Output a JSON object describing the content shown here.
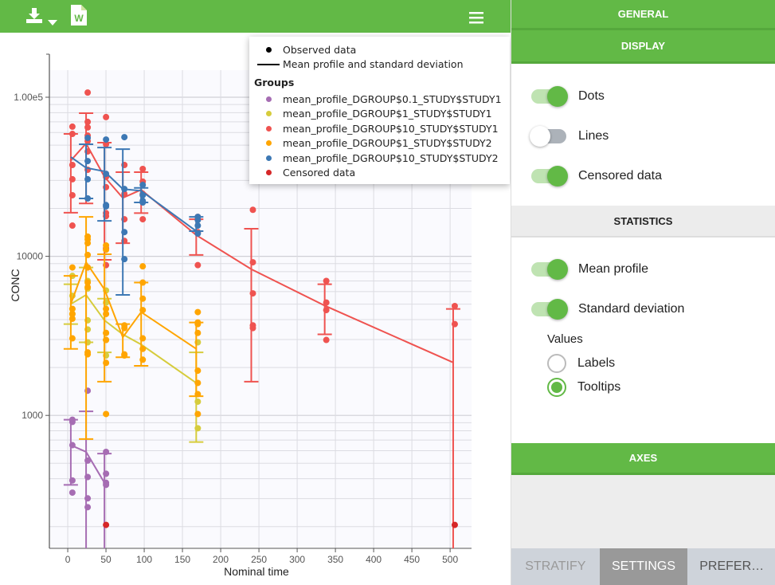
{
  "toolbar": {
    "download_icon": "download-icon",
    "dropdown_icon": "caret-down-icon",
    "word_icon_letter": "W",
    "menu_icon": "hamburger-menu-icon"
  },
  "legend": {
    "observed": "Observed data",
    "mean_sd": "Mean profile and standard deviation",
    "groups_title": "Groups",
    "censored": "Censored data"
  },
  "chart_data": {
    "type": "scatter",
    "xlabel": "Nominal time",
    "ylabel": "CONC",
    "yscale": "log",
    "xlim": [
      -24,
      528
    ],
    "ylim": [
      146,
      148000
    ],
    "xticks": [
      0,
      50,
      100,
      150,
      200,
      250,
      300,
      350,
      400,
      450,
      500
    ],
    "yticks": [
      {
        "v": 1000,
        "label": "1000"
      },
      {
        "v": 10000,
        "label": "10000"
      },
      {
        "v": 100000,
        "label": "1.00e5"
      }
    ],
    "grid": true,
    "legend_position": "top-right",
    "censored": {
      "color": "#d62728",
      "points": [
        [
          48,
          205
        ],
        [
          504,
          205
        ]
      ]
    },
    "series": [
      {
        "name": "mean_profile_DGROUP$0.1_STUDY$STUDY1",
        "color": "#a66db3",
        "points": [
          [
            4,
            940
          ],
          [
            4,
            910
          ],
          [
            4,
            650
          ],
          [
            4,
            390
          ],
          [
            4,
            327
          ],
          [
            24,
            1430
          ],
          [
            24,
            520
          ],
          [
            24,
            410
          ],
          [
            24,
            301
          ],
          [
            24,
            265
          ],
          [
            48,
            590
          ],
          [
            48,
            430
          ],
          [
            48,
            377
          ],
          [
            48,
            366
          ]
        ],
        "mean": [
          [
            4,
            650
          ],
          [
            24,
            590
          ],
          [
            48,
            377
          ]
        ],
        "sd": [
          [
            4,
            366,
            940
          ],
          [
            24,
            null,
            1060
          ],
          [
            48,
            null,
            575
          ]
        ]
      },
      {
        "name": "mean_profile_DGROUP$1_STUDY$STUDY1",
        "color": "#d6cc3c",
        "points": [
          [
            4,
            7530
          ],
          [
            4,
            5650
          ],
          [
            4,
            4670
          ],
          [
            4,
            4340
          ],
          [
            24,
            7000
          ],
          [
            24,
            6270
          ],
          [
            24,
            3960
          ],
          [
            24,
            3470
          ],
          [
            24,
            2880
          ],
          [
            48,
            6100
          ],
          [
            48,
            5120
          ],
          [
            48,
            3300
          ],
          [
            48,
            2980
          ],
          [
            48,
            2380
          ],
          [
            168,
            2880
          ],
          [
            168,
            1220
          ],
          [
            168,
            830
          ]
        ],
        "mean": [
          [
            4,
            5010
          ],
          [
            24,
            5720
          ],
          [
            48,
            3960
          ],
          [
            72,
            3230
          ],
          [
            96,
            2790
          ],
          [
            168,
            1600
          ]
        ],
        "sd": [
          [
            4,
            3750,
            6680
          ],
          [
            24,
            2880,
            8510
          ],
          [
            48,
            2490,
            5420
          ],
          [
            168,
            680,
            2490
          ]
        ]
      },
      {
        "name": "mean_profile_DGROUP$10_STUDY$STUDY1",
        "color": "#ef5350",
        "points": [
          [
            4,
            65300
          ],
          [
            4,
            58800
          ],
          [
            4,
            37500
          ],
          [
            4,
            30500
          ],
          [
            4,
            24200
          ],
          [
            4,
            15600
          ],
          [
            24,
            107000
          ],
          [
            24,
            70000
          ],
          [
            24,
            64600
          ],
          [
            24,
            57400
          ],
          [
            24,
            53000
          ],
          [
            24,
            45600
          ],
          [
            24,
            35000
          ],
          [
            24,
            8510
          ],
          [
            48,
            75000
          ],
          [
            48,
            50600
          ],
          [
            48,
            31600
          ],
          [
            48,
            27200
          ],
          [
            48,
            18700
          ],
          [
            48,
            17900
          ],
          [
            48,
            11200
          ],
          [
            48,
            8800
          ],
          [
            72,
            37500
          ],
          [
            72,
            24700
          ],
          [
            72,
            17100
          ],
          [
            72,
            12500
          ],
          [
            96,
            35400
          ],
          [
            96,
            29500
          ],
          [
            96,
            24700
          ],
          [
            96,
            17100
          ],
          [
            168,
            17700
          ],
          [
            168,
            17100
          ],
          [
            168,
            14200
          ],
          [
            168,
            8800
          ],
          [
            240,
            19600
          ],
          [
            240,
            9170
          ],
          [
            240,
            5850
          ],
          [
            240,
            3680
          ],
          [
            240,
            3540
          ],
          [
            336,
            7000
          ],
          [
            336,
            5120
          ],
          [
            336,
            4590
          ],
          [
            336,
            2980
          ],
          [
            504,
            4870
          ],
          [
            504,
            3750
          ]
        ],
        "mean": [
          [
            4,
            40000
          ],
          [
            24,
            51200
          ],
          [
            48,
            31600
          ],
          [
            72,
            23300
          ],
          [
            96,
            26200
          ],
          [
            168,
            13600
          ],
          [
            240,
            8300
          ],
          [
            336,
            4900
          ],
          [
            504,
            2150
          ]
        ],
        "sd": [
          [
            4,
            18800,
            58800
          ],
          [
            24,
            21500,
            79400
          ],
          [
            48,
            9500,
            51800
          ],
          [
            72,
            12100,
            33800
          ],
          [
            96,
            18700,
            33800
          ],
          [
            168,
            10200,
            17100
          ],
          [
            240,
            1630,
            14900
          ],
          [
            336,
            3230,
            6680
          ],
          [
            504,
            null,
            4670
          ]
        ]
      },
      {
        "name": "mean_profile_DGROUP$1_STUDY$STUDY2",
        "color": "#ffa500",
        "points": [
          [
            4,
            8510
          ],
          [
            4,
            4670
          ],
          [
            4,
            4340
          ],
          [
            4,
            4050
          ],
          [
            4,
            3050
          ],
          [
            24,
            13300
          ],
          [
            24,
            12800
          ],
          [
            24,
            12100
          ],
          [
            24,
            10200
          ],
          [
            24,
            8510
          ],
          [
            24,
            6840
          ],
          [
            24,
            6410
          ],
          [
            24,
            2490
          ],
          [
            24,
            2420
          ],
          [
            48,
            11700
          ],
          [
            48,
            11000
          ],
          [
            48,
            4670
          ],
          [
            48,
            4340
          ],
          [
            48,
            3300
          ],
          [
            48,
            2980
          ],
          [
            48,
            2140
          ],
          [
            48,
            1020
          ],
          [
            72,
            3680
          ],
          [
            72,
            3540
          ],
          [
            72,
            2420
          ],
          [
            72,
            2380
          ],
          [
            96,
            8650
          ],
          [
            96,
            6840
          ],
          [
            96,
            5420
          ],
          [
            96,
            4590
          ],
          [
            96,
            3050
          ],
          [
            96,
            2620
          ],
          [
            96,
            2240
          ],
          [
            168,
            4460
          ],
          [
            168,
            3840
          ],
          [
            168,
            3750
          ],
          [
            168,
            3300
          ],
          [
            168,
            1910
          ],
          [
            168,
            1600
          ],
          [
            168,
            1360
          ],
          [
            168,
            1020
          ]
        ],
        "mean": [
          [
            4,
            5010
          ],
          [
            24,
            9170
          ],
          [
            48,
            6200
          ],
          [
            72,
            3100
          ],
          [
            96,
            4460
          ],
          [
            168,
            2620
          ]
        ],
        "sd": [
          [
            4,
            2620,
            7530
          ],
          [
            24,
            710,
            17700
          ],
          [
            48,
            1630,
            10300
          ],
          [
            72,
            2320,
            3750
          ],
          [
            96,
            2050,
            6840
          ],
          [
            168,
            1320,
            3840
          ]
        ]
      },
      {
        "name": "mean_profile_DGROUP$10_STUDY$STUDY2",
        "color": "#3d78b4",
        "points": [
          [
            24,
            55500
          ],
          [
            24,
            39700
          ],
          [
            24,
            30500
          ],
          [
            24,
            23100
          ],
          [
            48,
            54200
          ],
          [
            48,
            33000
          ],
          [
            48,
            21000
          ],
          [
            48,
            20600
          ],
          [
            72,
            56100
          ],
          [
            72,
            26500
          ],
          [
            72,
            14200
          ],
          [
            72,
            9600
          ],
          [
            96,
            28100
          ],
          [
            96,
            24200
          ],
          [
            96,
            22300
          ],
          [
            96,
            21800
          ],
          [
            168,
            17700
          ],
          [
            168,
            16900
          ],
          [
            168,
            15600
          ],
          [
            168,
            13900
          ]
        ],
        "mean": [
          [
            4,
            42100
          ],
          [
            24,
            36000
          ],
          [
            48,
            34200
          ],
          [
            72,
            26500
          ],
          [
            96,
            25800
          ],
          [
            168,
            14400
          ]
        ],
        "sd": [
          [
            24,
            23100,
            50600
          ],
          [
            48,
            16700,
            48300
          ],
          [
            72,
            5720,
            47200
          ],
          [
            96,
            21800,
            26900
          ],
          [
            168,
            14400,
            17700
          ]
        ]
      }
    ]
  },
  "panel": {
    "general": "GENERAL",
    "display": "DISPLAY",
    "toggles": [
      {
        "label": "Dots",
        "on": true
      },
      {
        "label": "Lines",
        "on": false
      },
      {
        "label": "Censored data",
        "on": true
      }
    ],
    "statistics": "STATISTICS",
    "stat_toggles": [
      {
        "label": "Mean profile",
        "on": true
      },
      {
        "label": "Standard deviation",
        "on": true
      }
    ],
    "values_label": "Values",
    "values_options": [
      {
        "label": "Labels",
        "selected": false
      },
      {
        "label": "Tooltips",
        "selected": true
      }
    ],
    "axes": "AXES"
  },
  "tabs": [
    {
      "label": "STRATIFY",
      "active": false
    },
    {
      "label": "SETTINGS",
      "active": true
    },
    {
      "label": "PREFER…",
      "active": false
    }
  ],
  "colors": {
    "brand_green": "#62b946"
  }
}
